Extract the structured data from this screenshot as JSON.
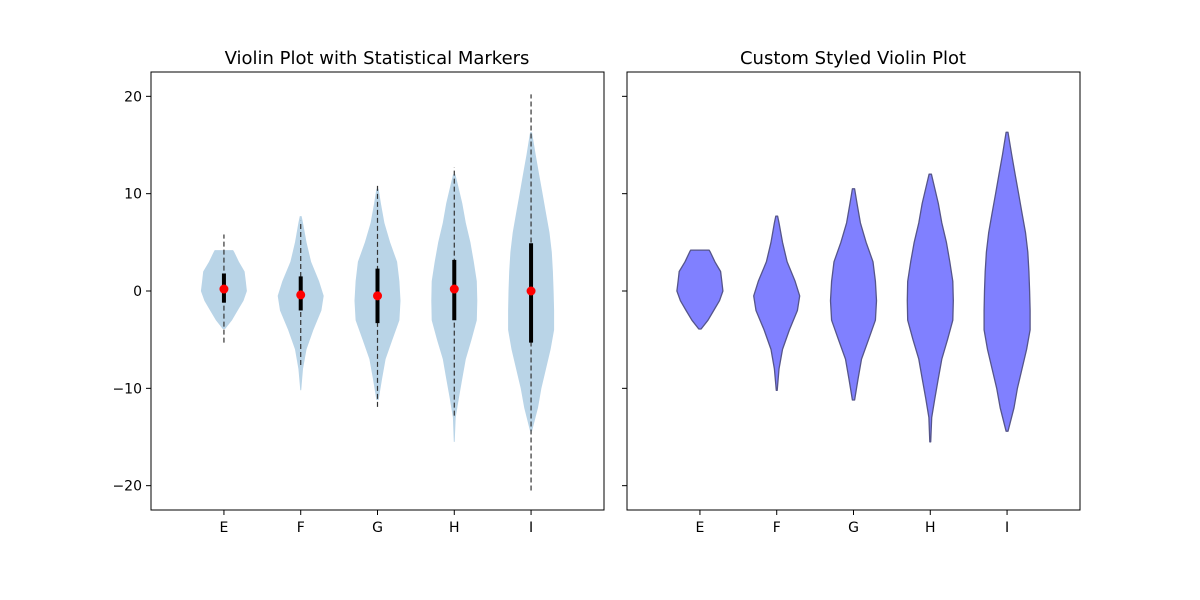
{
  "chart_data": [
    {
      "type": "violin",
      "title": "Violin Plot with Statistical Markers",
      "categories": [
        "E",
        "F",
        "G",
        "H",
        "I"
      ],
      "ylim": [
        -22.5,
        22.5
      ],
      "yticks": [
        -20,
        -10,
        0,
        10,
        20
      ],
      "ytick_labels": [
        "−20",
        "−10",
        "0",
        "10",
        "20"
      ],
      "grid": false,
      "colors": {
        "body": "#b9d4e7",
        "median": "#ff0000",
        "quartile": "#000000",
        "whisker": "#333333"
      },
      "violins": [
        {
          "category": "E",
          "min": -3.9,
          "max": 4.2,
          "whisker_low": -5.3,
          "whisker_high": 5.8,
          "q1": -1.2,
          "q3": 1.8,
          "median": 0.2,
          "profile": [
            [
              -3.9,
              0.05
            ],
            [
              -3.0,
              0.35
            ],
            [
              -2.0,
              0.6
            ],
            [
              -1.0,
              0.85
            ],
            [
              0,
              1.0
            ],
            [
              1.0,
              0.95
            ],
            [
              2.0,
              0.9
            ],
            [
              3.0,
              0.65
            ],
            [
              4.0,
              0.45
            ],
            [
              4.2,
              0.4
            ]
          ]
        },
        {
          "category": "F",
          "min": -10.2,
          "max": 7.7,
          "whisker_low": -7.6,
          "whisker_high": 7.2,
          "q1": -2.0,
          "q3": 1.5,
          "median": -0.4,
          "profile": [
            [
              -10.2,
              0.02
            ],
            [
              -8.0,
              0.1
            ],
            [
              -6.0,
              0.25
            ],
            [
              -4.0,
              0.55
            ],
            [
              -2.0,
              0.9
            ],
            [
              -0.5,
              1.0
            ],
            [
              1.0,
              0.8
            ],
            [
              3.0,
              0.45
            ],
            [
              5.0,
              0.25
            ],
            [
              7.0,
              0.1
            ],
            [
              7.7,
              0.04
            ]
          ]
        },
        {
          "category": "G",
          "min": -11.2,
          "max": 10.5,
          "whisker_low": -11.9,
          "whisker_high": 10.9,
          "q1": -3.3,
          "q3": 2.3,
          "median": -0.5,
          "profile": [
            [
              -11.2,
              0.05
            ],
            [
              -9.0,
              0.2
            ],
            [
              -7.0,
              0.35
            ],
            [
              -5.0,
              0.65
            ],
            [
              -3.0,
              0.95
            ],
            [
              -1.0,
              1.0
            ],
            [
              1.0,
              0.95
            ],
            [
              3.0,
              0.85
            ],
            [
              5.0,
              0.55
            ],
            [
              7.0,
              0.3
            ],
            [
              9.0,
              0.15
            ],
            [
              10.5,
              0.05
            ]
          ]
        },
        {
          "category": "H",
          "min": -15.5,
          "max": 12.0,
          "whisker_low": -12.8,
          "whisker_high": 12.7,
          "q1": -3.0,
          "q3": 3.2,
          "median": 0.2,
          "profile": [
            [
              -15.5,
              0.02
            ],
            [
              -13.0,
              0.06
            ],
            [
              -11.0,
              0.2
            ],
            [
              -9.0,
              0.35
            ],
            [
              -7.0,
              0.5
            ],
            [
              -5.0,
              0.75
            ],
            [
              -3.0,
              0.98
            ],
            [
              -1.0,
              1.0
            ],
            [
              1.0,
              0.98
            ],
            [
              3.0,
              0.85
            ],
            [
              5.0,
              0.7
            ],
            [
              7.0,
              0.5
            ],
            [
              9.0,
              0.35
            ],
            [
              11.0,
              0.15
            ],
            [
              12.0,
              0.05
            ]
          ]
        },
        {
          "category": "I",
          "min": -14.4,
          "max": 16.3,
          "whisker_low": -20.5,
          "whisker_high": 20.2,
          "q1": -5.3,
          "q3": 4.9,
          "median": 0.0,
          "profile": [
            [
              -14.4,
              0.04
            ],
            [
              -12.0,
              0.3
            ],
            [
              -10.0,
              0.45
            ],
            [
              -8.0,
              0.65
            ],
            [
              -6.0,
              0.85
            ],
            [
              -4.0,
              1.0
            ],
            [
              -2.0,
              1.0
            ],
            [
              0.0,
              0.98
            ],
            [
              2.0,
              0.95
            ],
            [
              4.0,
              0.9
            ],
            [
              6.0,
              0.8
            ],
            [
              8.0,
              0.65
            ],
            [
              10.0,
              0.5
            ],
            [
              12.0,
              0.35
            ],
            [
              14.0,
              0.2
            ],
            [
              16.3,
              0.04
            ]
          ]
        }
      ]
    },
    {
      "type": "violin",
      "title": "Custom Styled Violin Plot",
      "categories": [
        "E",
        "F",
        "G",
        "H",
        "I"
      ],
      "ylim": [
        -22.5,
        22.5
      ],
      "yticks": [
        -20,
        -10,
        0,
        10,
        20
      ],
      "ytick_labels": [
        "",
        "",
        "",
        "",
        ""
      ],
      "grid": false,
      "colors": {
        "body": "#8080ff",
        "edge": "#55558a"
      },
      "violins": [
        {
          "category": "E",
          "min": -3.9,
          "max": 4.2,
          "profile": [
            [
              -3.9,
              0.05
            ],
            [
              -3.0,
              0.35
            ],
            [
              -2.0,
              0.6
            ],
            [
              -1.0,
              0.85
            ],
            [
              0,
              1.0
            ],
            [
              1.0,
              0.95
            ],
            [
              2.0,
              0.9
            ],
            [
              3.0,
              0.65
            ],
            [
              4.0,
              0.45
            ],
            [
              4.2,
              0.4
            ]
          ]
        },
        {
          "category": "F",
          "min": -10.2,
          "max": 7.7,
          "profile": [
            [
              -10.2,
              0.02
            ],
            [
              -8.0,
              0.1
            ],
            [
              -6.0,
              0.25
            ],
            [
              -4.0,
              0.55
            ],
            [
              -2.0,
              0.9
            ],
            [
              -0.5,
              1.0
            ],
            [
              1.0,
              0.8
            ],
            [
              3.0,
              0.45
            ],
            [
              5.0,
              0.25
            ],
            [
              7.0,
              0.1
            ],
            [
              7.7,
              0.04
            ]
          ]
        },
        {
          "category": "G",
          "min": -11.2,
          "max": 10.5,
          "profile": [
            [
              -11.2,
              0.05
            ],
            [
              -9.0,
              0.2
            ],
            [
              -7.0,
              0.35
            ],
            [
              -5.0,
              0.65
            ],
            [
              -3.0,
              0.95
            ],
            [
              -1.0,
              1.0
            ],
            [
              1.0,
              0.95
            ],
            [
              3.0,
              0.85
            ],
            [
              5.0,
              0.55
            ],
            [
              7.0,
              0.3
            ],
            [
              9.0,
              0.15
            ],
            [
              10.5,
              0.05
            ]
          ]
        },
        {
          "category": "H",
          "min": -15.5,
          "max": 12.0,
          "profile": [
            [
              -15.5,
              0.02
            ],
            [
              -13.0,
              0.06
            ],
            [
              -11.0,
              0.2
            ],
            [
              -9.0,
              0.35
            ],
            [
              -7.0,
              0.5
            ],
            [
              -5.0,
              0.75
            ],
            [
              -3.0,
              0.98
            ],
            [
              -1.0,
              1.0
            ],
            [
              1.0,
              0.98
            ],
            [
              3.0,
              0.85
            ],
            [
              5.0,
              0.7
            ],
            [
              7.0,
              0.5
            ],
            [
              9.0,
              0.35
            ],
            [
              11.0,
              0.15
            ],
            [
              12.0,
              0.05
            ]
          ]
        },
        {
          "category": "I",
          "min": -14.4,
          "max": 16.3,
          "profile": [
            [
              -14.4,
              0.04
            ],
            [
              -12.0,
              0.3
            ],
            [
              -10.0,
              0.45
            ],
            [
              -8.0,
              0.65
            ],
            [
              -6.0,
              0.85
            ],
            [
              -4.0,
              1.0
            ],
            [
              -2.0,
              1.0
            ],
            [
              0.0,
              0.98
            ],
            [
              2.0,
              0.95
            ],
            [
              4.0,
              0.9
            ],
            [
              6.0,
              0.8
            ],
            [
              8.0,
              0.65
            ],
            [
              10.0,
              0.5
            ],
            [
              12.0,
              0.35
            ],
            [
              14.0,
              0.2
            ],
            [
              16.3,
              0.04
            ]
          ]
        }
      ]
    }
  ]
}
